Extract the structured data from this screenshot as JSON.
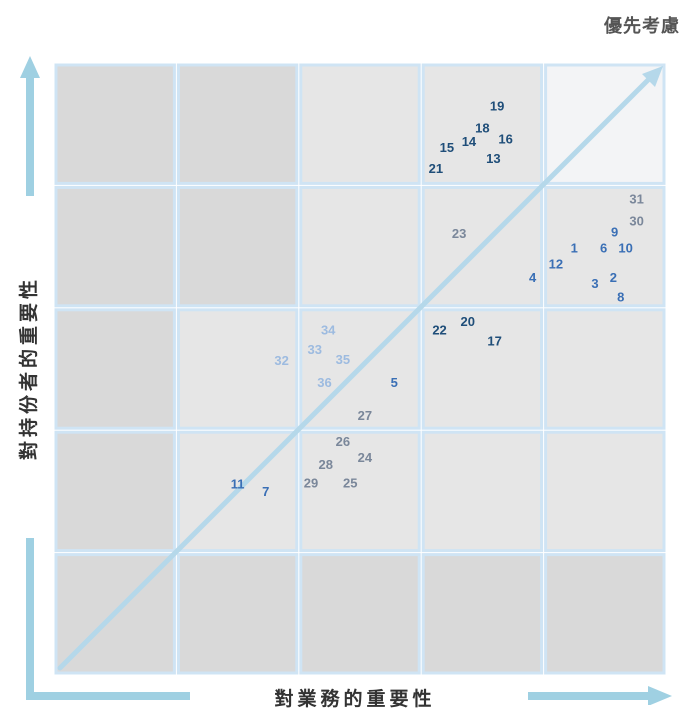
{
  "labels": {
    "priority": "優先考慮",
    "x_axis": "對業務的重要性",
    "y_axis": "對持份者的重要性"
  },
  "grid": {
    "rows": 5,
    "cols": 5
  },
  "colors": {
    "cell_dark": "#d9d9d9",
    "cell_mid": "#e6e6e6",
    "cell_light": "#f3f4f6",
    "cell_border": "#cfe4f4",
    "arrow": "#9fd0e2",
    "diagonal": "#b5d8ea",
    "num_navy": "#1f4e79",
    "num_blue": "#3a6fb5",
    "num_gray": "#7a879a",
    "num_light": "#9dbbe0"
  },
  "cell_shades": [
    [
      "dark",
      "dark",
      "mid",
      "mid",
      "light"
    ],
    [
      "dark",
      "dark",
      "mid",
      "mid",
      "mid"
    ],
    [
      "dark",
      "mid",
      "mid",
      "mid",
      "mid"
    ],
    [
      "dark",
      "mid",
      "mid",
      "mid",
      "mid"
    ],
    [
      "dark",
      "dark",
      "dark",
      "dark",
      "dark"
    ]
  ],
  "points": [
    {
      "label": "19",
      "x": 3.62,
      "y": 4.64,
      "tone": "navy"
    },
    {
      "label": "18",
      "x": 3.5,
      "y": 4.46,
      "tone": "navy"
    },
    {
      "label": "16",
      "x": 3.69,
      "y": 4.37,
      "tone": "navy"
    },
    {
      "label": "15",
      "x": 3.21,
      "y": 4.3,
      "tone": "navy"
    },
    {
      "label": "14",
      "x": 3.39,
      "y": 4.35,
      "tone": "navy"
    },
    {
      "label": "13",
      "x": 3.59,
      "y": 4.21,
      "tone": "navy"
    },
    {
      "label": "21",
      "x": 3.12,
      "y": 4.13,
      "tone": "navy"
    },
    {
      "label": "31",
      "x": 4.76,
      "y": 3.88,
      "tone": "gray"
    },
    {
      "label": "30",
      "x": 4.76,
      "y": 3.7,
      "tone": "gray"
    },
    {
      "label": "9",
      "x": 4.58,
      "y": 3.61,
      "tone": "blue"
    },
    {
      "label": "23",
      "x": 3.31,
      "y": 3.6,
      "tone": "gray"
    },
    {
      "label": "1",
      "x": 4.25,
      "y": 3.48,
      "tone": "blue"
    },
    {
      "label": "6",
      "x": 4.49,
      "y": 3.48,
      "tone": "blue"
    },
    {
      "label": "10",
      "x": 4.67,
      "y": 3.48,
      "tone": "blue"
    },
    {
      "label": "12",
      "x": 4.1,
      "y": 3.35,
      "tone": "blue"
    },
    {
      "label": "4",
      "x": 3.91,
      "y": 3.24,
      "tone": "blue"
    },
    {
      "label": "3",
      "x": 4.42,
      "y": 3.19,
      "tone": "blue"
    },
    {
      "label": "2",
      "x": 4.57,
      "y": 3.24,
      "tone": "blue"
    },
    {
      "label": "8",
      "x": 4.63,
      "y": 3.08,
      "tone": "blue"
    },
    {
      "label": "20",
      "x": 3.38,
      "y": 2.88,
      "tone": "navy"
    },
    {
      "label": "22",
      "x": 3.15,
      "y": 2.81,
      "tone": "navy"
    },
    {
      "label": "17",
      "x": 3.6,
      "y": 2.72,
      "tone": "navy"
    },
    {
      "label": "34",
      "x": 2.24,
      "y": 2.81,
      "tone": "light"
    },
    {
      "label": "33",
      "x": 2.13,
      "y": 2.65,
      "tone": "light"
    },
    {
      "label": "35",
      "x": 2.36,
      "y": 2.57,
      "tone": "light"
    },
    {
      "label": "32",
      "x": 1.86,
      "y": 2.56,
      "tone": "light"
    },
    {
      "label": "36",
      "x": 2.21,
      "y": 2.38,
      "tone": "light"
    },
    {
      "label": "5",
      "x": 2.78,
      "y": 2.38,
      "tone": "blue"
    },
    {
      "label": "27",
      "x": 2.54,
      "y": 2.11,
      "tone": "gray"
    },
    {
      "label": "26",
      "x": 2.36,
      "y": 1.9,
      "tone": "gray"
    },
    {
      "label": "24",
      "x": 2.54,
      "y": 1.77,
      "tone": "gray"
    },
    {
      "label": "28",
      "x": 2.22,
      "y": 1.71,
      "tone": "gray"
    },
    {
      "label": "11",
      "x": 1.5,
      "y": 1.55,
      "tone": "blue"
    },
    {
      "label": "7",
      "x": 1.73,
      "y": 1.49,
      "tone": "blue"
    },
    {
      "label": "29",
      "x": 2.1,
      "y": 1.56,
      "tone": "gray"
    },
    {
      "label": "25",
      "x": 2.42,
      "y": 1.56,
      "tone": "gray"
    }
  ]
}
